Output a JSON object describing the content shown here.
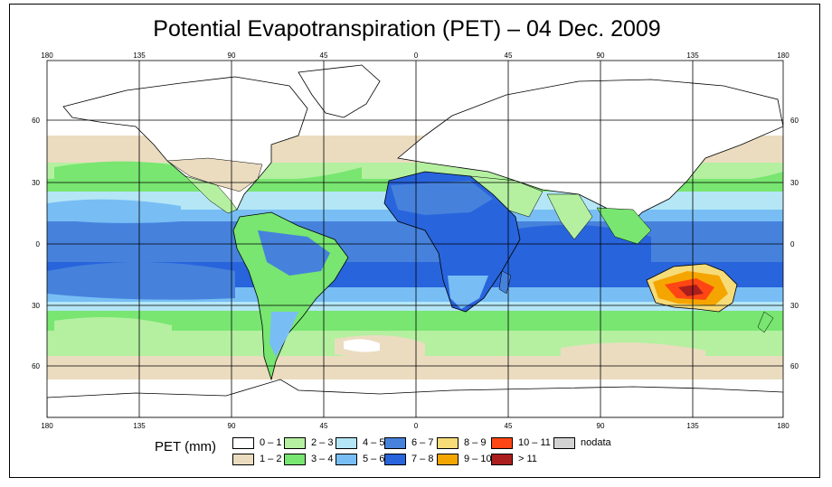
{
  "title": "Potential Evapotranspiration (PET) – 04 Dec. 2009",
  "axes": {
    "lon_labels": [
      "180",
      "135",
      "90",
      "45",
      "0",
      "45",
      "90",
      "135",
      "180"
    ],
    "lat_labels": [
      "60",
      "30",
      "0",
      "30",
      "60"
    ]
  },
  "legend": {
    "label": "PET (mm)",
    "items": [
      {
        "label": "0 – 1",
        "color": "#ffffff"
      },
      {
        "label": "1 – 2",
        "color": "#ebdcc0"
      },
      {
        "label": "2 – 3",
        "color": "#b4f0a0"
      },
      {
        "label": "3 – 4",
        "color": "#78e670"
      },
      {
        "label": "4 – 5",
        "color": "#b4e6f5"
      },
      {
        "label": "5 – 6",
        "color": "#78bef5"
      },
      {
        "label": "6 – 7",
        "color": "#4682dc"
      },
      {
        "label": "7 – 8",
        "color": "#2864dc"
      },
      {
        "label": "8 – 9",
        "color": "#f5dc78"
      },
      {
        "label": "9 – 10",
        "color": "#f5a500"
      },
      {
        "label": "10 – 11",
        "color": "#ff4614"
      },
      {
        "label": "> 11",
        "color": "#aa1e1e"
      },
      {
        "label": "nodata",
        "color": "#d2d2d2"
      }
    ]
  },
  "colors": {
    "ocean_tropical": "#4682dc",
    "ocean_deep": "#2864dc",
    "ocean_mid": "#78bef5",
    "ocean_light": "#b4e6f5",
    "green_light": "#b4f0a0",
    "green": "#78e670",
    "tan": "#ebdcc0",
    "white": "#ffffff",
    "hot_yellow": "#f5dc78",
    "hot_orange": "#f5a500",
    "hot_red": "#ff4614",
    "hot_darkred": "#aa1e1e"
  }
}
